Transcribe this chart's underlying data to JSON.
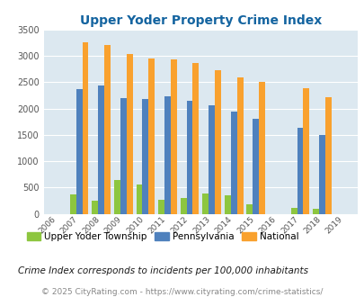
{
  "title": "Upper Yoder Property Crime Index",
  "years": [
    2006,
    2007,
    2008,
    2009,
    2010,
    2011,
    2012,
    2013,
    2014,
    2015,
    2016,
    2017,
    2018,
    2019
  ],
  "upper_yoder": [
    0,
    370,
    250,
    640,
    560,
    270,
    305,
    390,
    355,
    185,
    0,
    110,
    90,
    0
  ],
  "pennsylvania": [
    0,
    2370,
    2440,
    2200,
    2175,
    2230,
    2155,
    2065,
    1940,
    1800,
    0,
    1630,
    1490,
    0
  ],
  "national": [
    0,
    3260,
    3210,
    3040,
    2960,
    2930,
    2870,
    2730,
    2600,
    2500,
    0,
    2380,
    2210,
    0
  ],
  "upper_yoder_color": "#8dc63f",
  "pennsylvania_color": "#4f81bd",
  "national_color": "#f9a12e",
  "bg_color": "#dce8f0",
  "title_color": "#1464a0",
  "ylim": [
    0,
    3500
  ],
  "yticks": [
    0,
    500,
    1000,
    1500,
    2000,
    2500,
    3000,
    3500
  ],
  "legend_labels": [
    "Upper Yoder Township",
    "Pennsylvania",
    "National"
  ],
  "footnote1": "Crime Index corresponds to incidents per 100,000 inhabitants",
  "footnote2": "© 2025 CityRating.com - https://www.cityrating.com/crime-statistics/",
  "bar_width": 0.28,
  "grid_color": "#ffffff"
}
